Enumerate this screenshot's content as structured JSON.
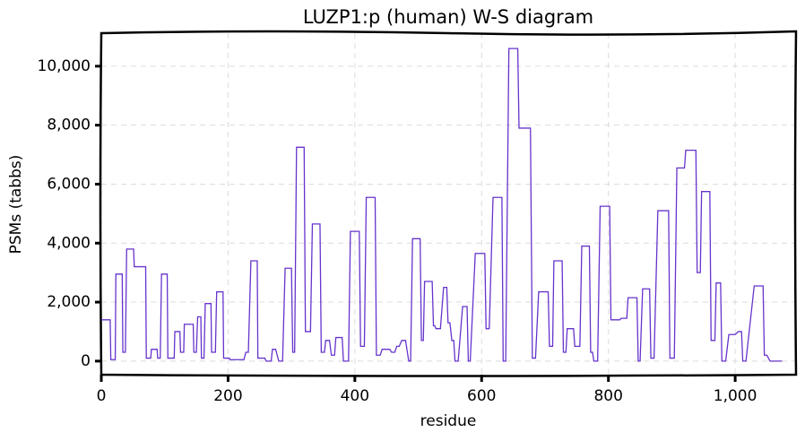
{
  "chart_data": {
    "type": "line",
    "title": "LUZP1:p (human) W-S diagram",
    "x_label": "residue",
    "y_label": "PSMs (tabbs)",
    "xlim": [
      0,
      1096
    ],
    "ylim": [
      -460,
      11120
    ],
    "xticks": [
      0,
      200,
      400,
      600,
      800,
      {
        "value": 1000,
        "label": "1,000"
      }
    ],
    "yticks": [
      0,
      {
        "value": 2000,
        "label": "2,000"
      },
      {
        "value": 4000,
        "label": "4,000"
      },
      {
        "value": 6000,
        "label": "6,000"
      },
      {
        "value": 8000,
        "label": "8,000"
      },
      {
        "value": 10000,
        "label": "10,000"
      }
    ],
    "grid": true,
    "x": [
      0,
      14,
      15,
      22,
      23,
      33,
      34,
      38,
      40,
      51,
      52,
      70,
      71,
      78,
      79,
      88,
      89,
      93,
      95,
      104,
      105,
      115,
      116,
      124,
      125,
      130,
      131,
      145,
      146,
      150,
      152,
      157,
      158,
      162,
      164,
      173,
      174,
      180,
      182,
      192,
      193,
      202,
      203,
      225,
      228,
      232,
      236,
      246,
      247,
      258,
      260,
      268,
      270,
      275,
      280,
      286,
      290,
      300,
      302,
      305,
      308,
      320,
      322,
      330,
      333,
      345,
      347,
      352,
      354,
      360,
      363,
      368,
      370,
      380,
      382,
      390,
      393,
      407,
      409,
      415,
      418,
      432,
      434,
      440,
      443,
      455,
      458,
      463,
      466,
      470,
      474,
      480,
      485,
      488,
      491,
      503,
      505,
      508,
      510,
      522,
      524,
      526,
      528,
      535,
      540,
      545,
      547,
      550,
      553,
      556,
      558,
      563,
      570,
      577,
      579,
      582,
      590,
      605,
      607,
      612,
      618,
      632,
      634,
      638,
      643,
      657,
      659,
      677,
      680,
      685,
      690,
      705,
      707,
      712,
      714,
      727,
      729,
      733,
      735,
      745,
      747,
      755,
      758,
      770,
      772,
      775,
      777,
      783,
      787,
      802,
      804,
      818,
      820,
      829,
      831,
      845,
      847,
      850,
      854,
      865,
      867,
      872,
      878,
      895,
      897,
      904,
      908,
      920,
      922,
      938,
      940,
      945,
      947,
      960,
      962,
      968,
      970,
      977,
      979,
      985,
      990,
      1000,
      1005,
      1010,
      1012,
      1017,
      1030,
      1044,
      1046,
      1050,
      1055,
      1074
    ],
    "series": [
      {
        "color": "#6633cc",
        "values": [
          1400,
          1400,
          50,
          50,
          2950,
          2950,
          300,
          300,
          3800,
          3800,
          3200,
          3200,
          100,
          100,
          400,
          400,
          100,
          100,
          2950,
          2950,
          100,
          100,
          1000,
          1000,
          300,
          300,
          1250,
          1250,
          300,
          300,
          1500,
          1500,
          100,
          100,
          1950,
          1950,
          300,
          300,
          2350,
          2350,
          100,
          100,
          50,
          50,
          300,
          300,
          3400,
          3400,
          100,
          100,
          0,
          0,
          400,
          400,
          0,
          0,
          3150,
          3150,
          300,
          300,
          7250,
          7250,
          1000,
          1000,
          4650,
          4650,
          300,
          300,
          700,
          700,
          200,
          200,
          800,
          800,
          0,
          0,
          4400,
          4400,
          500,
          500,
          5550,
          5550,
          200,
          200,
          400,
          400,
          300,
          300,
          500,
          500,
          700,
          700,
          0,
          0,
          4150,
          4150,
          700,
          700,
          2700,
          2700,
          1200,
          1200,
          1100,
          1100,
          2500,
          2500,
          1300,
          1300,
          700,
          700,
          0,
          0,
          1850,
          1850,
          0,
          0,
          3650,
          3650,
          1100,
          1100,
          5550,
          5550,
          0,
          0,
          10600,
          10600,
          7900,
          7900,
          100,
          100,
          2350,
          2350,
          500,
          500,
          3400,
          3400,
          300,
          300,
          1100,
          1100,
          500,
          500,
          3900,
          3900,
          300,
          300,
          0,
          0,
          5250,
          5250,
          1400,
          1400,
          1450,
          1450,
          2150,
          2150,
          0,
          0,
          2450,
          2450,
          100,
          100,
          5100,
          5100,
          100,
          100,
          6550,
          6550,
          7150,
          7150,
          3000,
          3000,
          5750,
          5750,
          700,
          700,
          2650,
          2650,
          0,
          0,
          900,
          900,
          1000,
          1000,
          0,
          0,
          2550,
          2550,
          200,
          200,
          0,
          0
        ]
      }
    ]
  }
}
